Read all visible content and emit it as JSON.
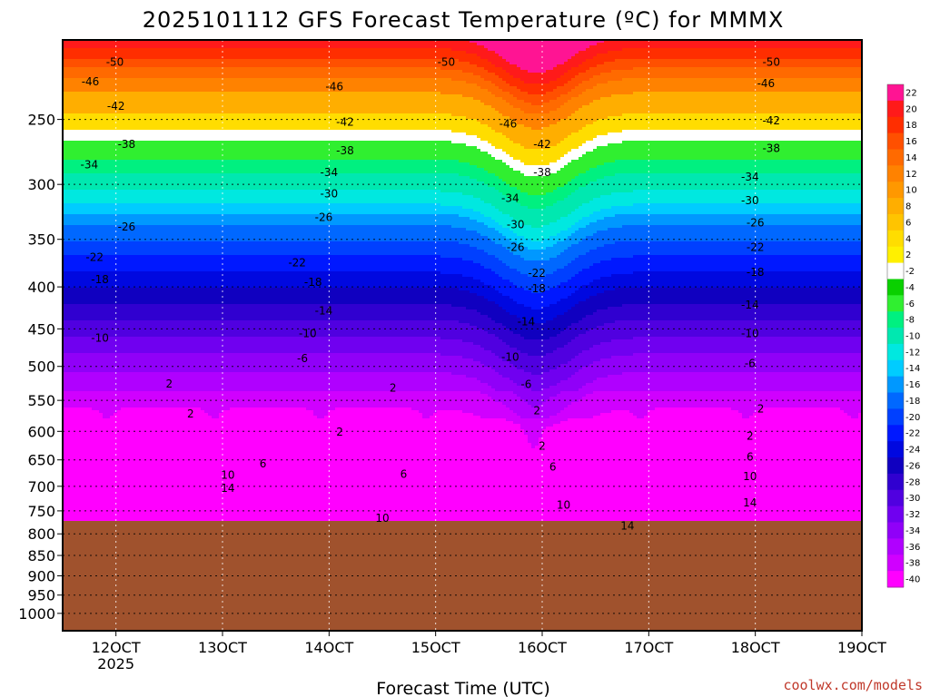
{
  "chart_data": {
    "type": "heatmap",
    "title": "2025101112 GFS Forecast Temperature (ºC) for MMMX",
    "xlabel": "Forecast Time (UTC)",
    "credit": "coolwx.com/models",
    "x_ticks": [
      "12OCT",
      "13OCT",
      "14OCT",
      "15OCT",
      "16OCT",
      "17OCT",
      "18OCT",
      "19OCT"
    ],
    "x_tick_sub": "2025",
    "y_ticks": [
      "250",
      "300",
      "350",
      "400",
      "450",
      "500",
      "550",
      "600",
      "650",
      "700",
      "750",
      "800",
      "850",
      "900",
      "950",
      "1000"
    ],
    "y_axis": "pressure (hPa), inverted, log scale",
    "ylim": [
      1050,
      200
    ],
    "x_days": [
      11.5,
      19.0
    ],
    "surface_level_hPa": 780,
    "colorbar": {
      "labels": [
        "22",
        "20",
        "18",
        "16",
        "14",
        "12",
        "10",
        "8",
        "6",
        "4",
        "2",
        "-2",
        "-4",
        "-6",
        "-8",
        "-10",
        "-12",
        "-14",
        "-16",
        "-18",
        "-20",
        "-22",
        "-24",
        "-26",
        "-28",
        "-30",
        "-32",
        "-34",
        "-36",
        "-38",
        "-40"
      ],
      "colors": [
        "#ff1493",
        "#ff1a1a",
        "#ff2e00",
        "#ff5000",
        "#ff6a00",
        "#ff8200",
        "#ff9800",
        "#ffae00",
        "#ffc400",
        "#ffdd00",
        "#fff000",
        "#ffffff",
        "#0ad000",
        "#30ef30",
        "#00f080",
        "#00e8b0",
        "#00e8e0",
        "#00ccff",
        "#0098ff",
        "#0068ff",
        "#0040ff",
        "#0018ff",
        "#0008e0",
        "#1000c0",
        "#3000d0",
        "#5000e0",
        "#7000f0",
        "#9000f8",
        "#b000ff",
        "#d000ff",
        "#ff00ff"
      ]
    },
    "contour_labels": [
      {
        "text": "-50",
        "x": 11.99,
        "y": 213
      },
      {
        "text": "-50",
        "x": 15.1,
        "y": 213
      },
      {
        "text": "-50",
        "x": 18.15,
        "y": 213
      },
      {
        "text": "-46",
        "x": 11.76,
        "y": 225
      },
      {
        "text": "-46",
        "x": 14.05,
        "y": 228
      },
      {
        "text": "-46",
        "x": 15.68,
        "y": 253
      },
      {
        "text": "-46",
        "x": 18.1,
        "y": 226
      },
      {
        "text": "-42",
        "x": 12.0,
        "y": 241
      },
      {
        "text": "-42",
        "x": 14.15,
        "y": 252
      },
      {
        "text": "-42",
        "x": 16.0,
        "y": 268
      },
      {
        "text": "-42",
        "x": 18.15,
        "y": 251
      },
      {
        "text": "-38",
        "x": 12.1,
        "y": 268
      },
      {
        "text": "-38",
        "x": 14.15,
        "y": 273
      },
      {
        "text": "-38",
        "x": 16.0,
        "y": 290
      },
      {
        "text": "-38",
        "x": 18.15,
        "y": 271
      },
      {
        "text": "-34",
        "x": 11.75,
        "y": 284
      },
      {
        "text": "-34",
        "x": 14.0,
        "y": 290
      },
      {
        "text": "-34",
        "x": 15.7,
        "y": 312
      },
      {
        "text": "-34",
        "x": 17.95,
        "y": 294
      },
      {
        "text": "-30",
        "x": 14.0,
        "y": 308
      },
      {
        "text": "-30",
        "x": 15.75,
        "y": 336
      },
      {
        "text": "-30",
        "x": 17.95,
        "y": 314
      },
      {
        "text": "-26",
        "x": 12.1,
        "y": 338
      },
      {
        "text": "-26",
        "x": 13.95,
        "y": 329
      },
      {
        "text": "-26",
        "x": 15.75,
        "y": 358
      },
      {
        "text": "-26",
        "x": 18.0,
        "y": 334
      },
      {
        "text": "-22",
        "x": 11.8,
        "y": 368
      },
      {
        "text": "-22",
        "x": 13.7,
        "y": 374
      },
      {
        "text": "-22",
        "x": 15.95,
        "y": 385
      },
      {
        "text": "-22",
        "x": 18.0,
        "y": 358
      },
      {
        "text": "-18",
        "x": 11.85,
        "y": 392
      },
      {
        "text": "-18",
        "x": 13.85,
        "y": 395
      },
      {
        "text": "-18",
        "x": 15.95,
        "y": 402
      },
      {
        "text": "-18",
        "x": 18.0,
        "y": 384
      },
      {
        "text": "-14",
        "x": 13.95,
        "y": 428
      },
      {
        "text": "-14",
        "x": 15.85,
        "y": 441
      },
      {
        "text": "-14",
        "x": 17.95,
        "y": 421
      },
      {
        "text": "-10",
        "x": 11.85,
        "y": 462
      },
      {
        "text": "-10",
        "x": 13.8,
        "y": 456
      },
      {
        "text": "-10",
        "x": 15.7,
        "y": 487
      },
      {
        "text": "-10",
        "x": 17.95,
        "y": 456
      },
      {
        "text": "-6",
        "x": 13.75,
        "y": 489
      },
      {
        "text": "-6",
        "x": 15.85,
        "y": 526
      },
      {
        "text": "-6",
        "x": 17.95,
        "y": 496
      },
      {
        "text": "2",
        "x": 12.5,
        "y": 525
      },
      {
        "text": "2",
        "x": 14.6,
        "y": 531
      },
      {
        "text": "2",
        "x": 15.95,
        "y": 566
      },
      {
        "text": "2",
        "x": 18.05,
        "y": 563
      },
      {
        "text": "2",
        "x": 12.7,
        "y": 571
      },
      {
        "text": "2",
        "x": 14.1,
        "y": 601
      },
      {
        "text": "2",
        "x": 16.0,
        "y": 625
      },
      {
        "text": "2",
        "x": 17.95,
        "y": 608
      },
      {
        "text": "6",
        "x": 13.38,
        "y": 657
      },
      {
        "text": "6",
        "x": 14.7,
        "y": 677
      },
      {
        "text": "6",
        "x": 16.1,
        "y": 663
      },
      {
        "text": "6",
        "x": 17.95,
        "y": 645
      },
      {
        "text": "10",
        "x": 13.05,
        "y": 678
      },
      {
        "text": "10",
        "x": 14.5,
        "y": 766
      },
      {
        "text": "10",
        "x": 16.2,
        "y": 738
      },
      {
        "text": "10",
        "x": 17.95,
        "y": 681
      },
      {
        "text": "14",
        "x": 13.05,
        "y": 704
      },
      {
        "text": "14",
        "x": 16.8,
        "y": 782
      },
      {
        "text": "14",
        "x": 17.95,
        "y": 733
      }
    ]
  }
}
